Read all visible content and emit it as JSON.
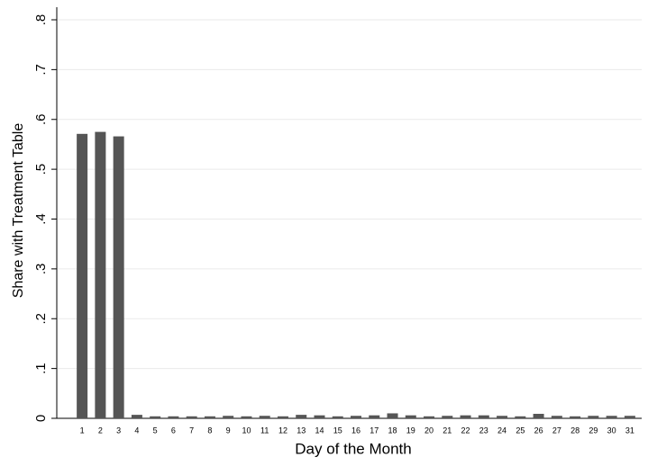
{
  "chart_data": {
    "type": "bar",
    "xlabel": "Day of the Month",
    "ylabel": "Share with Treatment Table",
    "categories": [
      "1",
      "2",
      "3",
      "4",
      "5",
      "6",
      "7",
      "8",
      "9",
      "10",
      "11",
      "12",
      "13",
      "14",
      "15",
      "16",
      "17",
      "18",
      "19",
      "20",
      "21",
      "22",
      "23",
      "24",
      "25",
      "26",
      "27",
      "28",
      "29",
      "30",
      "31"
    ],
    "values": [
      0.571,
      0.575,
      0.566,
      0.007,
      0.004,
      0.004,
      0.004,
      0.004,
      0.005,
      0.004,
      0.005,
      0.004,
      0.007,
      0.006,
      0.004,
      0.005,
      0.006,
      0.01,
      0.006,
      0.004,
      0.005,
      0.006,
      0.006,
      0.005,
      0.004,
      0.009,
      0.005,
      0.004,
      0.005,
      0.005,
      0.005
    ],
    "color": "#555555",
    "ylim": [
      0,
      0.8
    ],
    "yticks": [
      0,
      {
        "value": 0.1,
        "label": ".1"
      },
      {
        "value": 0.2,
        "label": ".2"
      },
      {
        "value": 0.3,
        "label": ".3"
      },
      {
        "value": 0.4,
        "label": ".4"
      },
      {
        "value": 0.5,
        "label": ".5"
      },
      {
        "value": 0.6,
        "label": ".6"
      },
      {
        "value": 0.7,
        "label": ".7"
      },
      {
        "value": 0.8,
        "label": ".8"
      }
    ],
    "grid": true
  }
}
